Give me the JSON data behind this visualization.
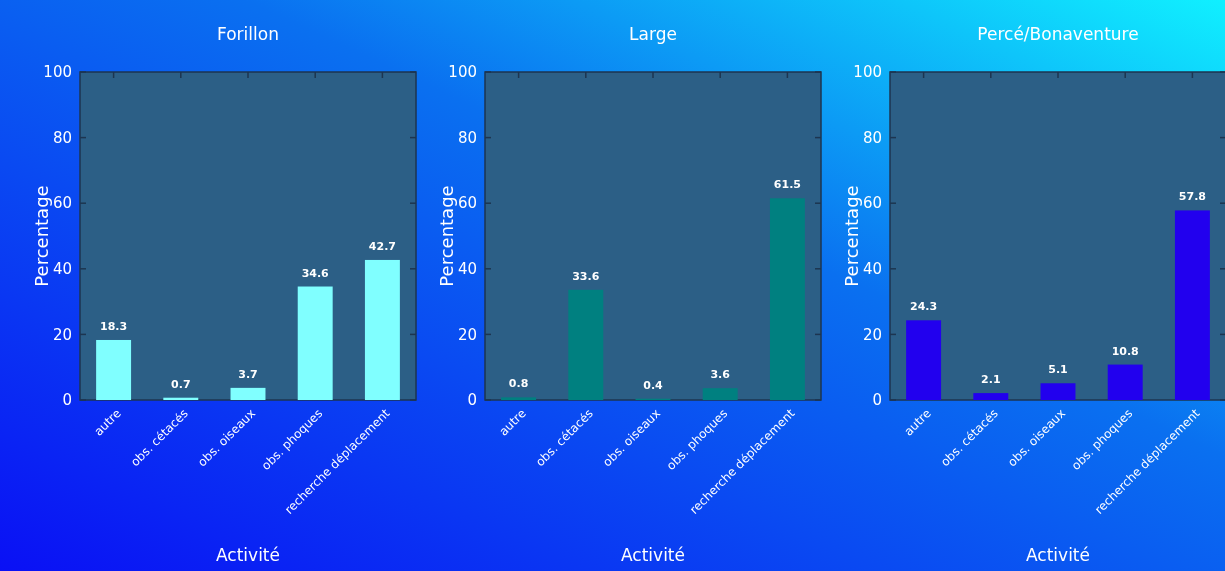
{
  "chart_data": [
    {
      "type": "bar",
      "title": "Forillon",
      "xlabel": "Activité",
      "ylabel": "Percentage",
      "categories": [
        "autre",
        "obs. cétacés",
        "obs. oiseaux",
        "obs. phoques",
        "recherche déplacement"
      ],
      "values": [
        18.3,
        0.7,
        3.7,
        34.6,
        42.7
      ],
      "color": "#80ffff",
      "ylim": [
        0,
        100
      ],
      "yticks": [
        0,
        20,
        40,
        60,
        80,
        100
      ],
      "data_labels": true
    },
    {
      "type": "bar",
      "title": "Large",
      "xlabel": "Activité",
      "ylabel": "Percentage",
      "categories": [
        "autre",
        "obs. cétacés",
        "obs. oiseaux",
        "obs. phoques",
        "recherche déplacement"
      ],
      "values": [
        0.8,
        33.6,
        0.4,
        3.6,
        61.5
      ],
      "color": "#008080",
      "ylim": [
        0,
        100
      ],
      "yticks": [
        0,
        20,
        40,
        60,
        80,
        100
      ],
      "data_labels": true
    },
    {
      "type": "bar",
      "title": "Percé/Bonaventure",
      "xlabel": "Activité",
      "ylabel": "Percentage",
      "categories": [
        "autre",
        "obs. cétacés",
        "obs. oiseaux",
        "obs. phoques",
        "recherche déplacement"
      ],
      "values": [
        24.3,
        2.1,
        5.1,
        10.8,
        57.8
      ],
      "color": "#2200ee",
      "ylim": [
        0,
        100
      ],
      "yticks": [
        0,
        20,
        40,
        60,
        80,
        100
      ],
      "data_labels": true
    }
  ]
}
